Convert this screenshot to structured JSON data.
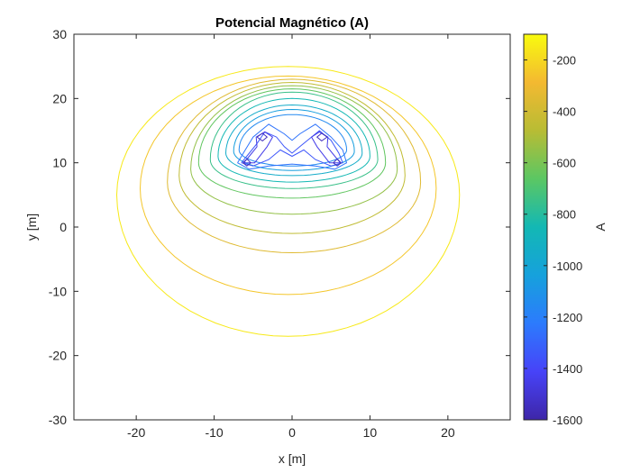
{
  "chart_data": {
    "type": "contour",
    "title": "Potencial Magnético (A)",
    "xlabel": "x [m]",
    "ylabel": "y [m]",
    "xlim": [
      -28,
      28
    ],
    "ylim": [
      -30,
      30
    ],
    "xticks": [
      -20,
      -10,
      0,
      10,
      20
    ],
    "yticks": [
      -30,
      -20,
      -10,
      0,
      10,
      20,
      30
    ],
    "colorbar": {
      "label": "A",
      "range": [
        -1600,
        -100
      ],
      "ticks": [
        -1600,
        -1400,
        -1200,
        -1000,
        -800,
        -600,
        -400,
        -200
      ],
      "colormap": "parula"
    },
    "grid": false,
    "contour_levels": [
      {
        "level": -150,
        "type": "ellipse",
        "cx": -0.5,
        "cy": 5,
        "rxL": 22,
        "rxR": 22,
        "ryTop": 20,
        "ryBot": 22
      },
      {
        "level": -250,
        "type": "ellipse",
        "cx": -0.5,
        "cy": 6,
        "rxL": 19,
        "rxR": 19,
        "ryTop": 17.5,
        "ryBot": 16.5
      },
      {
        "level": -350,
        "type": "ellipse",
        "cx": 0,
        "cy": 7,
        "rxL": 16,
        "rxR": 16.5,
        "ryTop": 16,
        "ryBot": 11
      },
      {
        "level": -450,
        "type": "ellipse",
        "cx": 0,
        "cy": 8,
        "rxL": 14.5,
        "rxR": 14.5,
        "ryTop": 14.5,
        "ryBot": 9
      },
      {
        "level": -550,
        "type": "ellipse",
        "cx": 0,
        "cy": 9,
        "rxL": 13,
        "rxR": 13.5,
        "ryTop": 13,
        "ryBot": 7
      },
      {
        "level": -650,
        "type": "ellipse",
        "cx": 0,
        "cy": 10,
        "rxL": 12,
        "rxR": 12,
        "ryTop": 11.5,
        "ryBot": 5.5
      },
      {
        "level": -750,
        "type": "ellipse",
        "cx": 0,
        "cy": 10.5,
        "rxL": 10.5,
        "rxR": 11,
        "ryTop": 10.5,
        "ryBot": 4.5
      },
      {
        "level": -850,
        "type": "ellipse",
        "cx": 0,
        "cy": 11,
        "rxL": 9.5,
        "rxR": 10,
        "ryTop": 9,
        "ryBot": 4
      },
      {
        "level": -950,
        "type": "ellipse",
        "cx": 0,
        "cy": 11.5,
        "rxL": 8.5,
        "rxR": 9,
        "ryTop": 7.5,
        "ryBot": 3.5
      },
      {
        "level": -1050,
        "type": "ellipse",
        "cx": 0,
        "cy": 11.8,
        "rxL": 7.5,
        "rxR": 8,
        "ryTop": 6.5,
        "ryBot": 3
      },
      {
        "level": -1150,
        "type": "ellipse",
        "cx": 0,
        "cy": 12,
        "rxL": 6.8,
        "rxR": 7,
        "ryTop": 5.5,
        "ryBot": 2.5
      },
      {
        "level": -1250,
        "type": "poly",
        "points": [
          [
            -7,
            10
          ],
          [
            -6,
            12
          ],
          [
            -5,
            14
          ],
          [
            -3,
            16
          ],
          [
            -1,
            14.5
          ],
          [
            0,
            13.5
          ],
          [
            1,
            14.5
          ],
          [
            3,
            16
          ],
          [
            5,
            14
          ],
          [
            6.5,
            12
          ],
          [
            7,
            10
          ],
          [
            5.5,
            9
          ],
          [
            3,
            9.5
          ],
          [
            0,
            9.8
          ],
          [
            -3,
            9.5
          ],
          [
            -5.5,
            9
          ],
          [
            -7,
            10
          ]
        ]
      },
      {
        "level": -1350,
        "type": "poly",
        "points": [
          [
            -6.5,
            10
          ],
          [
            -5.5,
            11.5
          ],
          [
            -4.5,
            13
          ],
          [
            -3.5,
            14.8
          ],
          [
            -2,
            14
          ],
          [
            -1,
            12.5
          ],
          [
            0,
            11.5
          ],
          [
            1,
            12.5
          ],
          [
            2.5,
            14
          ],
          [
            3.5,
            15
          ],
          [
            5,
            13.5
          ],
          [
            6,
            11.5
          ],
          [
            6.5,
            10
          ],
          [
            5,
            9.5
          ],
          [
            3,
            10.5
          ],
          [
            1.5,
            12
          ],
          [
            0,
            11
          ],
          [
            -1.5,
            12
          ],
          [
            -3,
            10.5
          ],
          [
            -5,
            9.5
          ],
          [
            -6.5,
            10
          ]
        ]
      },
      {
        "level": -1450,
        "type": "poly",
        "points": [
          [
            -6.2,
            10
          ],
          [
            -5.5,
            11
          ],
          [
            -4.5,
            12.5
          ],
          [
            -4.6,
            14
          ],
          [
            -3.5,
            14.8
          ],
          [
            -2.5,
            14
          ],
          [
            -3.2,
            12.5
          ],
          [
            -4.8,
            10
          ],
          [
            -6.2,
            10
          ]
        ]
      },
      {
        "level": -1450,
        "type": "poly",
        "points": [
          [
            6.2,
            10
          ],
          [
            5.5,
            11
          ],
          [
            4.5,
            12.5
          ],
          [
            4.6,
            14
          ],
          [
            3.5,
            14.8
          ],
          [
            2.5,
            14
          ],
          [
            3.2,
            12.5
          ],
          [
            4.8,
            10
          ],
          [
            6.2,
            10
          ]
        ]
      },
      {
        "level": -1550,
        "type": "poly",
        "points": [
          [
            -4.5,
            14
          ],
          [
            -3.8,
            14.6
          ],
          [
            -3.2,
            14
          ],
          [
            -3.8,
            13.4
          ],
          [
            -4.5,
            14
          ]
        ]
      },
      {
        "level": -1550,
        "type": "poly",
        "points": [
          [
            4.5,
            14
          ],
          [
            3.8,
            14.6
          ],
          [
            3.2,
            14
          ],
          [
            3.8,
            13.4
          ],
          [
            4.5,
            14
          ]
        ]
      },
      {
        "level": -1550,
        "type": "poly",
        "points": [
          [
            -6.3,
            10
          ],
          [
            -5.8,
            10.6
          ],
          [
            -5.3,
            10
          ],
          [
            -5.8,
            9.5
          ],
          [
            -6.3,
            10
          ]
        ]
      },
      {
        "level": -1550,
        "type": "poly",
        "points": [
          [
            6.3,
            10
          ],
          [
            5.8,
            10.6
          ],
          [
            5.3,
            10
          ],
          [
            5.8,
            9.5
          ],
          [
            6.3,
            10
          ]
        ]
      }
    ]
  }
}
